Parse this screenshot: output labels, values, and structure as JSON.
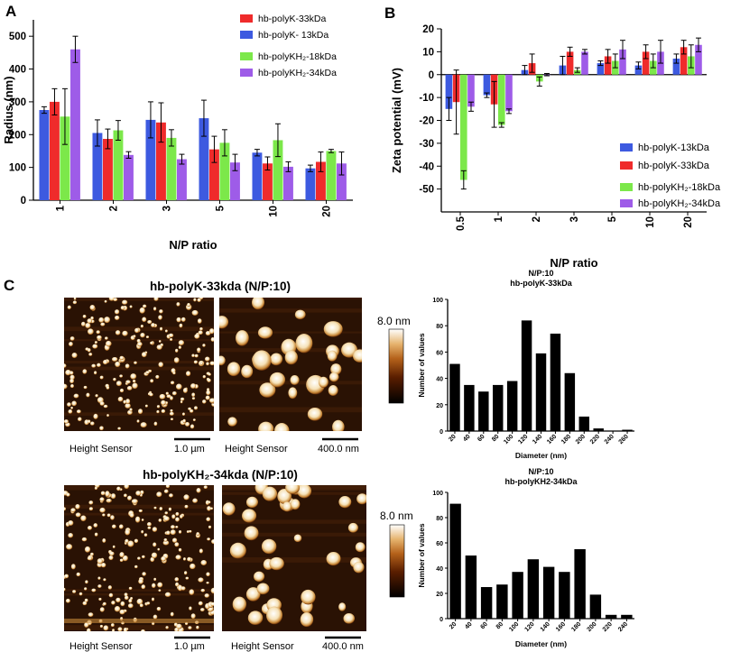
{
  "panels": {
    "a": {
      "letter": "A"
    },
    "b": {
      "letter": "B"
    },
    "c": {
      "letter": "C"
    }
  },
  "colors": {
    "red": "#ef2b2b",
    "blue": "#3d5ae0",
    "green": "#7ce84a",
    "purple": "#9e5ce8"
  },
  "chart_data": [
    {
      "id": "radius",
      "type": "bar",
      "title": "",
      "xlabel": "N/P ratio",
      "ylabel": "Radius (nm)",
      "categories": [
        "1",
        "2",
        "3",
        "5",
        "10",
        "20"
      ],
      "ylim": [
        0,
        550
      ],
      "yticks": [
        0,
        100,
        200,
        300,
        400,
        500
      ],
      "series": [
        {
          "name": "hb-polyK- 13kDa",
          "color": "blue",
          "values": [
            275,
            205,
            245,
            250,
            145,
            97
          ],
          "errors": [
            10,
            40,
            55,
            55,
            10,
            10
          ]
        },
        {
          "name": "hb-polyK-33kDa",
          "color": "red",
          "values": [
            300,
            187,
            237,
            155,
            112,
            117
          ],
          "errors": [
            40,
            30,
            60,
            40,
            20,
            30
          ]
        },
        {
          "name": "hb-polyKH₂-18kDa",
          "color": "green",
          "values": [
            255,
            213,
            190,
            175,
            183,
            150
          ],
          "errors": [
            85,
            30,
            25,
            40,
            50,
            5
          ]
        },
        {
          "name": "hb-polyKH₂-34kDa",
          "color": "purple",
          "values": [
            460,
            138,
            125,
            115,
            102,
            112
          ],
          "errors": [
            40,
            10,
            15,
            25,
            15,
            35
          ]
        }
      ],
      "legend_groups": [
        [
          "hb-polyK-33kDa",
          "hb-polyK- 13kDa"
        ],
        [
          "hb-polyKH₂-18kDa",
          "hb-polyKH₂-34kDa"
        ]
      ],
      "legend": [
        {
          "label": "hb-polyK-33kDa",
          "color": "red"
        },
        {
          "label": "hb-polyK- 13kDa",
          "color": "blue"
        },
        {
          "label": "hb-polyKH₂-18kDa",
          "color": "green"
        },
        {
          "label": "hb-polyKH₂-34kDa",
          "color": "purple"
        }
      ],
      "legend_position": "top-right"
    },
    {
      "id": "zeta",
      "type": "bar",
      "title": "",
      "xlabel": "N/P ratio",
      "ylabel": "Zeta potential (mV)",
      "categories": [
        "0.5",
        "1",
        "2",
        "3",
        "5",
        "10",
        "20"
      ],
      "ylim": [
        -60,
        20
      ],
      "yticks": [
        -50,
        -40,
        -30,
        -20,
        -10,
        0,
        10,
        20
      ],
      "series": [
        {
          "name": "hb-polyK-13kDa",
          "color": "blue",
          "values": [
            -15,
            -9,
            2,
            4,
            5,
            4,
            7
          ],
          "errors": [
            5,
            1,
            2,
            4,
            1,
            1.5,
            2
          ]
        },
        {
          "name": "hb-polyK-33kDa",
          "color": "red",
          "values": [
            -12,
            -13,
            5,
            10,
            8,
            10,
            12
          ],
          "errors": [
            14,
            10,
            4,
            2,
            3,
            3,
            3
          ]
        },
        {
          "name": "hb-polyKH₂-18kDa",
          "color": "green",
          "values": [
            -46,
            -22,
            -3,
            2,
            6,
            6,
            8
          ],
          "errors": [
            4,
            1,
            2,
            1,
            3,
            3,
            5
          ]
        },
        {
          "name": "hb-polyKH₂-34kDa",
          "color": "purple",
          "values": [
            -14,
            -16,
            0,
            10,
            11,
            10,
            13
          ],
          "errors": [
            2,
            1,
            0.5,
            1,
            4,
            5,
            3
          ]
        }
      ],
      "legend": [
        {
          "label": "hb-polyK-13kDa",
          "color": "blue"
        },
        {
          "label": "hb-polyK-33kDa",
          "color": "red"
        },
        {
          "label": "hb-polyKH₂-18kDa",
          "color": "green"
        },
        {
          "label": "hb-polyKH₂-34kDa",
          "color": "purple"
        }
      ],
      "legend_position": "bottom-right"
    },
    {
      "id": "hist1",
      "type": "bar",
      "title": "N/P:10",
      "subtitle": "hb-polyK-33kDa",
      "xlabel": "Diameter (nm)",
      "ylabel": "Number of values",
      "categories": [
        "20",
        "40",
        "60",
        "80",
        "100",
        "120",
        "140",
        "160",
        "180",
        "200",
        "220",
        "240",
        "260"
      ],
      "values": [
        51,
        35,
        30,
        35,
        38,
        84,
        59,
        74,
        44,
        11,
        2,
        0,
        1
      ],
      "ylim": [
        0,
        100
      ],
      "yticks": [
        0,
        20,
        40,
        60,
        80,
        100
      ]
    },
    {
      "id": "hist2",
      "type": "bar",
      "title": "N/P:10",
      "subtitle": "hb-polyKH2-34kDa",
      "xlabel": "Diameter (nm)",
      "ylabel": "Number of values",
      "categories": [
        "20",
        "40",
        "60",
        "80",
        "100",
        "120",
        "140",
        "160",
        "180",
        "200",
        "220",
        "240"
      ],
      "values": [
        91,
        50,
        25,
        27,
        37,
        47,
        41,
        37,
        55,
        19,
        3,
        3
      ],
      "ylim": [
        0,
        100
      ],
      "yticks": [
        0,
        20,
        40,
        60,
        80,
        100
      ]
    }
  ],
  "afm": {
    "row1": {
      "title": "hb-polyK-33kda (N/P:10)",
      "left_caption": "Height Sensor",
      "left_scale": "1.0 µm",
      "right_caption": "Height Sensor",
      "right_scale": "400.0 nm",
      "colorbar_label": "8.0 nm"
    },
    "row2": {
      "title": "hb-polyKH₂-34kda (N/P:10)",
      "left_caption": "Height Sensor",
      "left_scale": "1.0 µm",
      "right_caption": "Height Sensor",
      "right_scale": "400.0 nm",
      "colorbar_label": "8.0 nm"
    }
  }
}
